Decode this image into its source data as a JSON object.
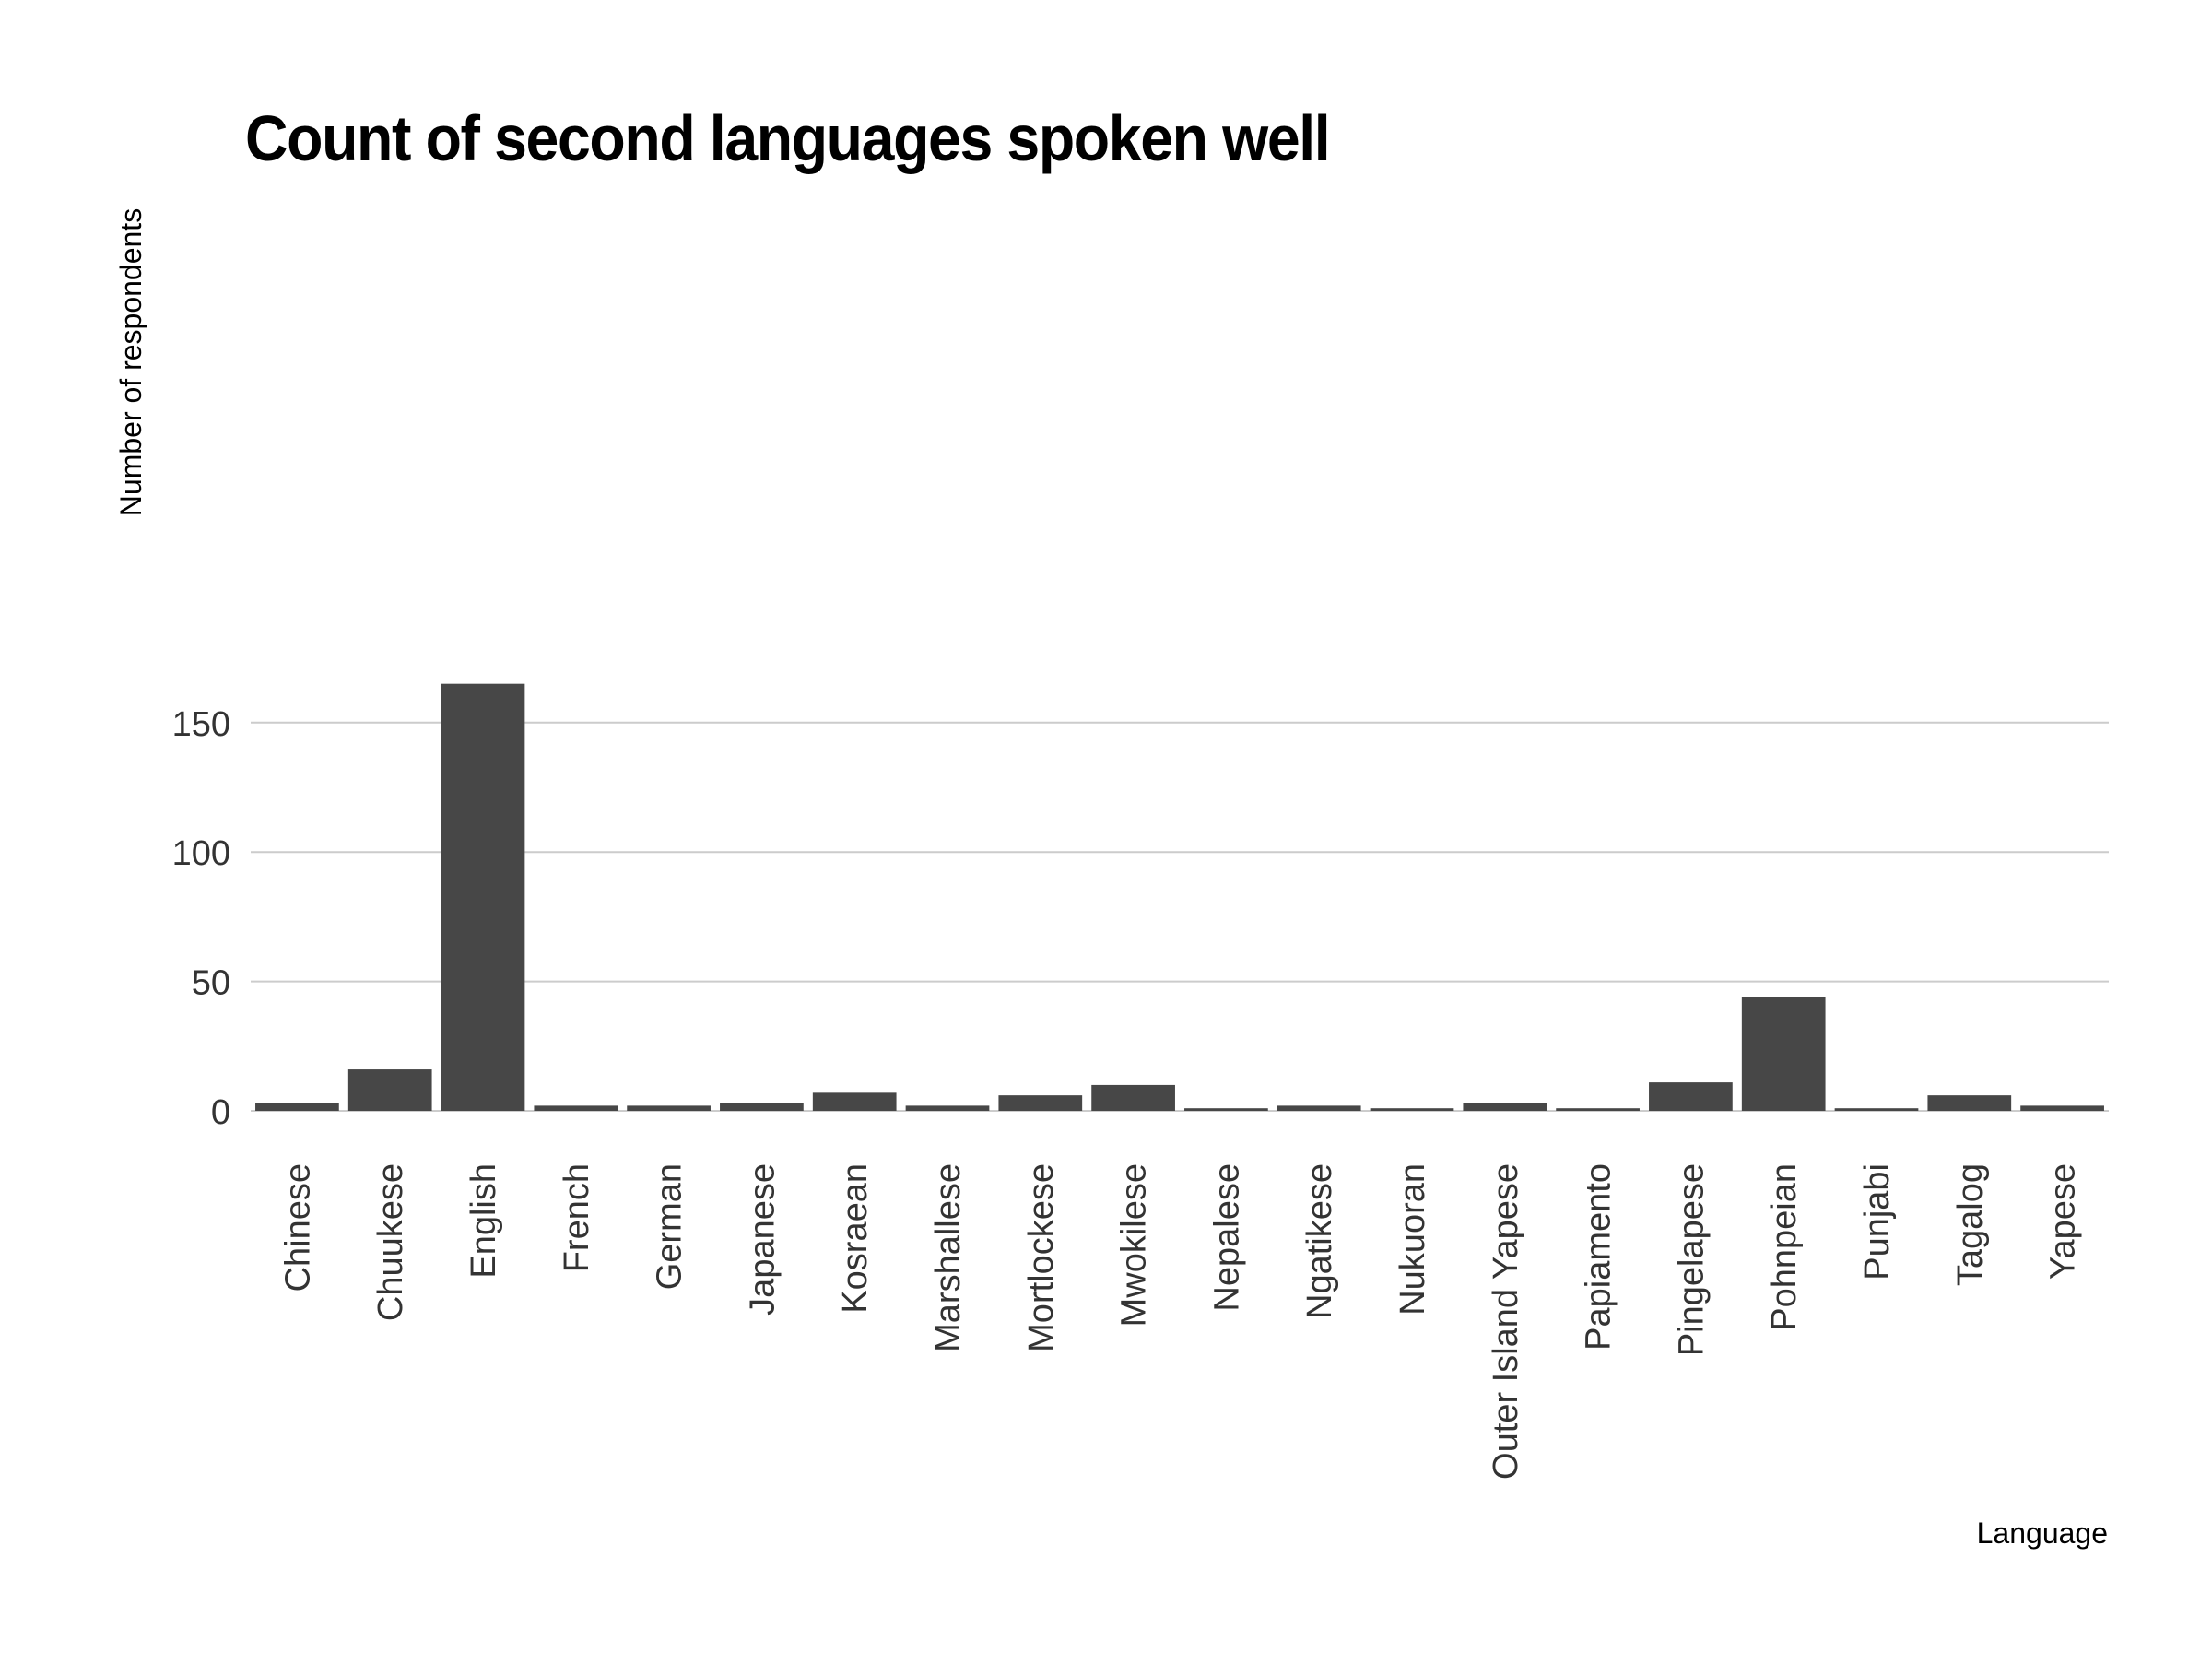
{
  "chart_data": {
    "type": "bar",
    "title": "Count of second languages spoken well",
    "xlabel": "Language",
    "ylabel": "Number of respondents",
    "categories": [
      "Chinese",
      "Chuukese",
      "English",
      "French",
      "German",
      "Japanese",
      "Kosraean",
      "Marshallese",
      "Mortlockese",
      "Mwokilese",
      "Nepalese",
      "Ngatikese",
      "Nukuoran",
      "Outer Island Yapese",
      "Papiamento",
      "Pingelapese",
      "Pohnpeian",
      "Punjabi",
      "Tagalog",
      "Yapese"
    ],
    "values": [
      3,
      16,
      165,
      2,
      2,
      3,
      7,
      2,
      6,
      10,
      1,
      2,
      1,
      3,
      1,
      11,
      44,
      1,
      6,
      2
    ],
    "ylim": [
      0,
      165
    ],
    "yticks": [
      "0",
      "50",
      "100",
      "150"
    ],
    "grid": true,
    "legend": "none",
    "bar_color": "#474747",
    "grid_color": "#cccccc"
  }
}
